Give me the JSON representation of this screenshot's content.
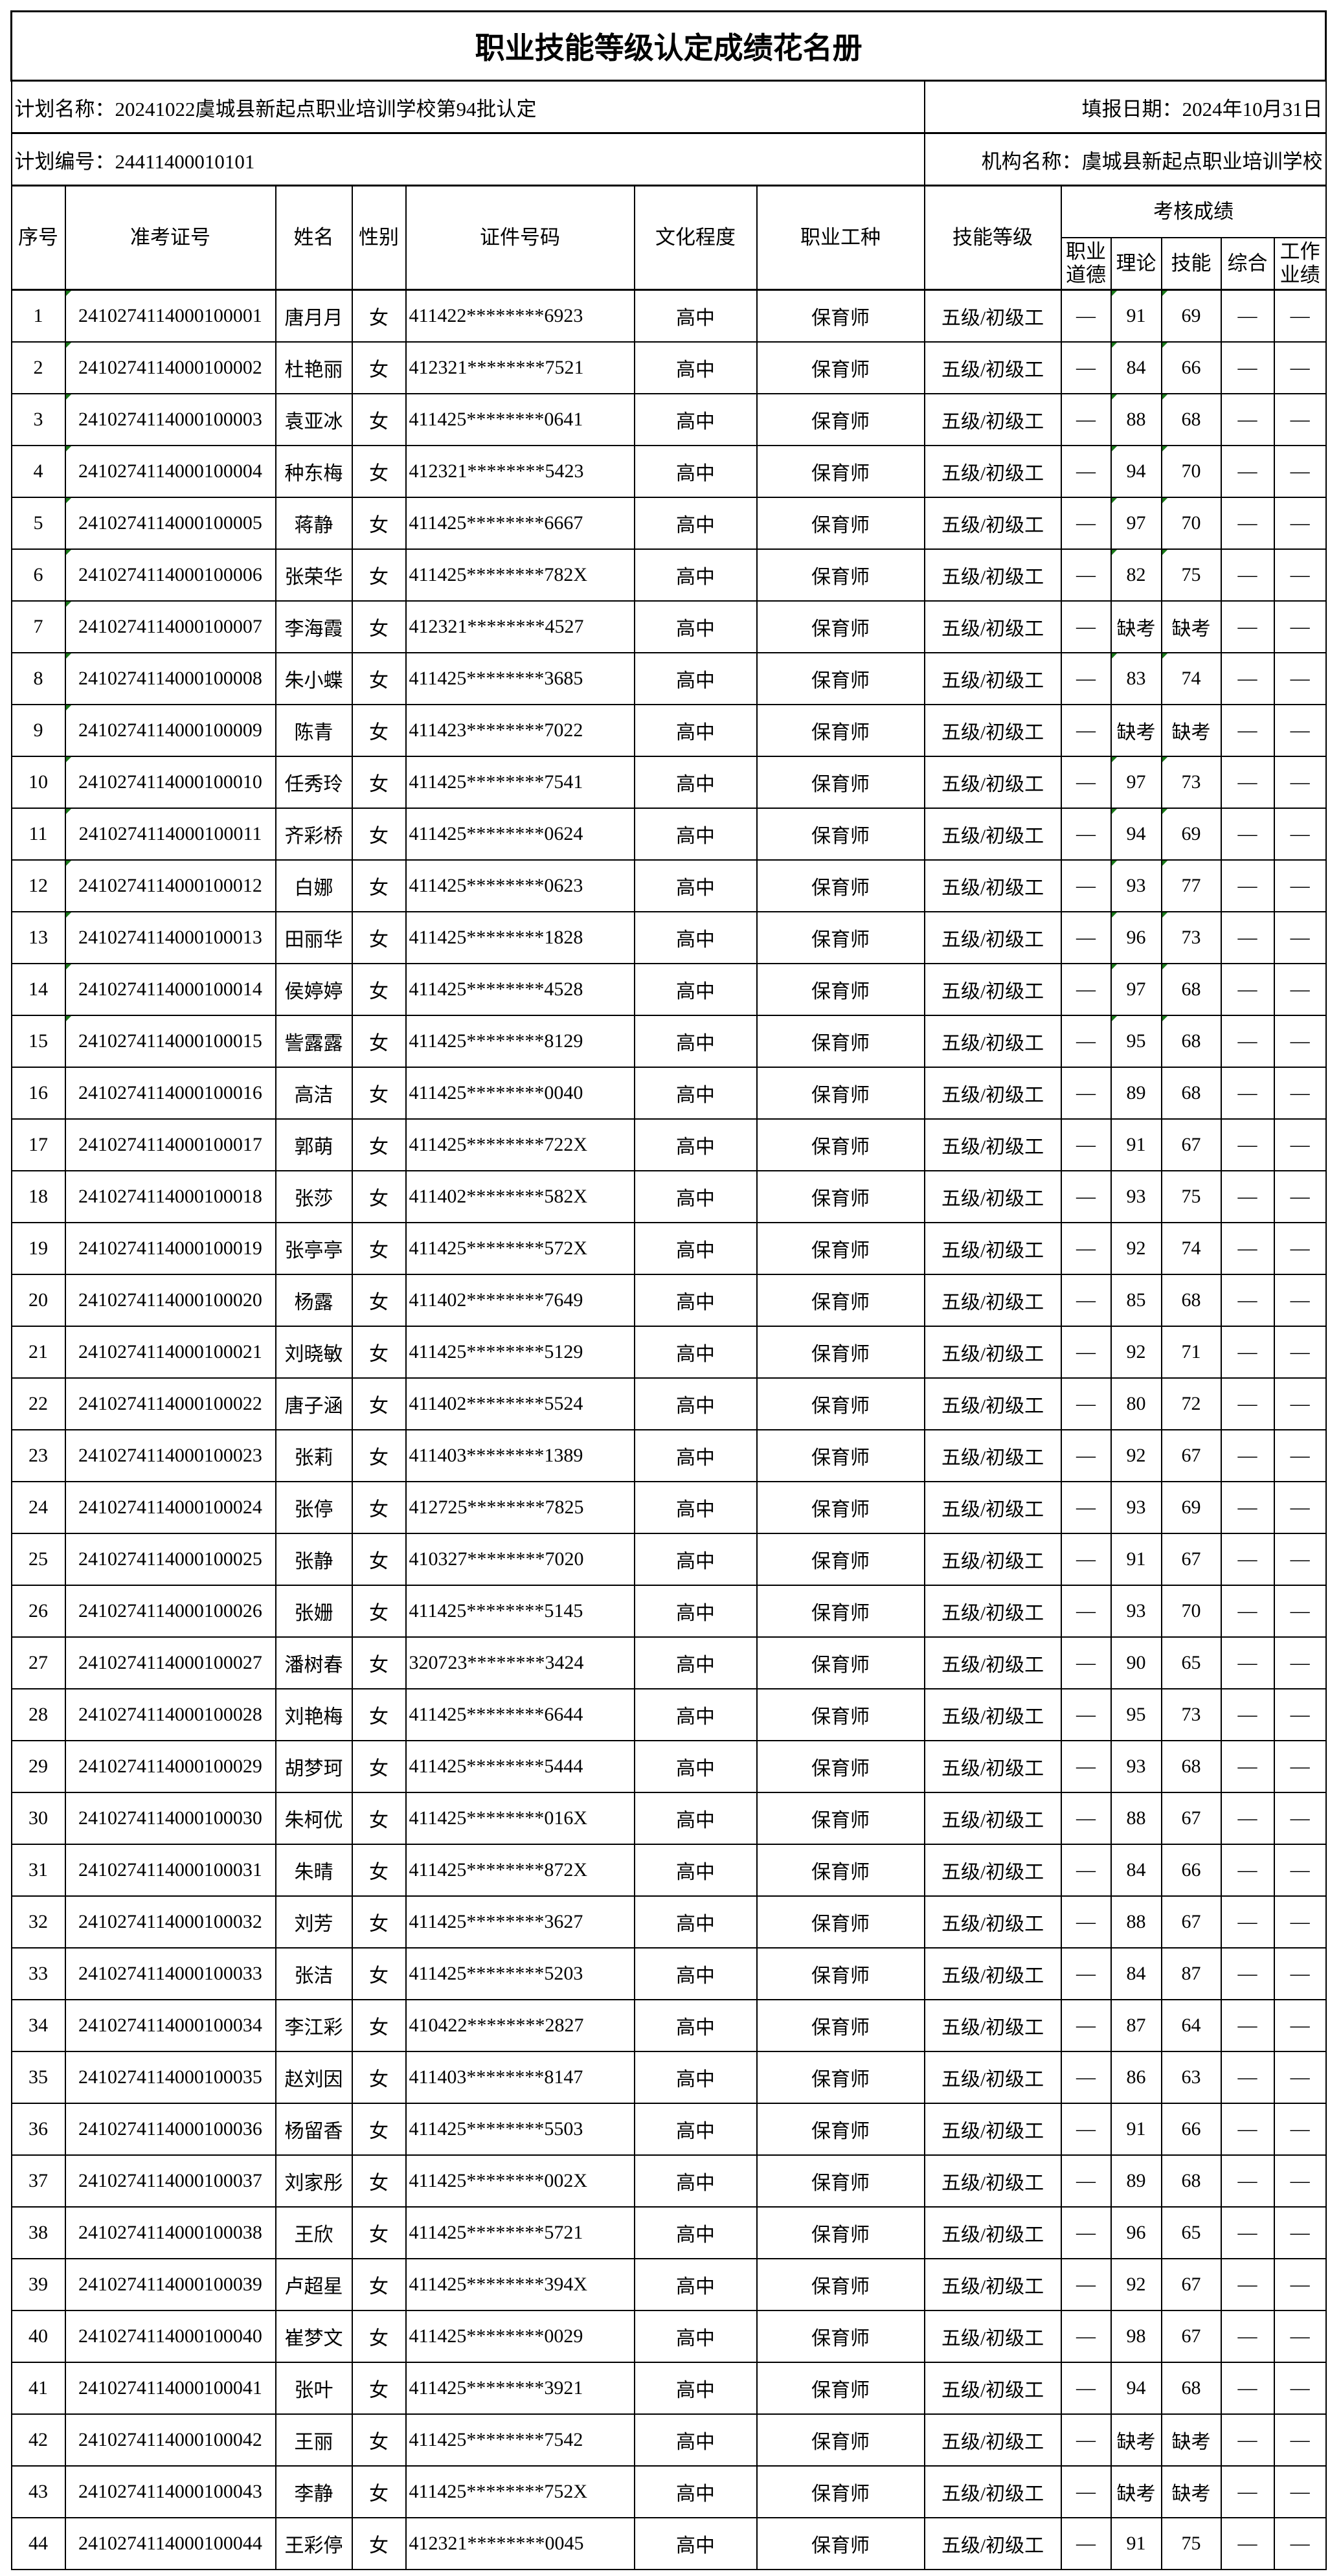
{
  "title": "职业技能等级认定成绩花名册",
  "info": {
    "plan_name": "计划名称：20241022虞城县新起点职业培训学校第94批认定",
    "fill_date": "填报日期：2024年10月31日",
    "plan_number": "计划编号：24411400010101",
    "org_name": "机构名称：虞城县新起点职业培训学校"
  },
  "headers": {
    "seq": "序号",
    "exam_id": "准考证号",
    "name": "姓名",
    "gender": "性别",
    "id_number": "证件号码",
    "education": "文化程度",
    "occupation": "职业工种",
    "skill_level": "技能等级",
    "scores_group": "考核成绩",
    "ethics": "职业道德",
    "theory": "理论",
    "skill": "技能",
    "comprehensive": "综合",
    "performance": "工作业绩"
  },
  "rows": [
    [
      "1",
      "241027411400010000 1",
      "唐月月",
      "女",
      "411422********6923",
      "高中",
      "保育师",
      "五级/初级工",
      "—",
      "91",
      "69",
      "—",
      "—"
    ],
    [
      "2",
      "2410274114000100002",
      "杜艳丽",
      "女",
      "412321********7521",
      "高中",
      "保育师",
      "五级/初级工",
      "—",
      "84",
      "66",
      "—",
      "—"
    ],
    [
      "3",
      "2410274114000100003",
      "袁亚冰",
      "女",
      "411425********0641",
      "高中",
      "保育师",
      "五级/初级工",
      "—",
      "88",
      "68",
      "—",
      "—"
    ],
    [
      "4",
      "2410274114000100004",
      "种东梅",
      "女",
      "412321********5423",
      "高中",
      "保育师",
      "五级/初级工",
      "—",
      "94",
      "70",
      "—",
      "—"
    ],
    [
      "5",
      "2410274114000100005",
      "蒋静",
      "女",
      "411425********6667",
      "高中",
      "保育师",
      "五级/初级工",
      "—",
      "97",
      "70",
      "—",
      "—"
    ],
    [
      "6",
      "2410274114000100006",
      "张荣华",
      "女",
      "411425********782X",
      "高中",
      "保育师",
      "五级/初级工",
      "—",
      "82",
      "75",
      "—",
      "—"
    ],
    [
      "7",
      "2410274114000100007",
      "李海霞",
      "女",
      "412321********4527",
      "高中",
      "保育师",
      "五级/初级工",
      "—",
      "缺考",
      "缺考",
      "—",
      "—"
    ],
    [
      "8",
      "2410274114000100008",
      "朱小蝶",
      "女",
      "411425********3685",
      "高中",
      "保育师",
      "五级/初级工",
      "—",
      "83",
      "74",
      "—",
      "—"
    ],
    [
      "9",
      "2410274114000100009",
      "陈青",
      "女",
      "411423********7022",
      "高中",
      "保育师",
      "五级/初级工",
      "—",
      "缺考",
      "缺考",
      "—",
      "—"
    ],
    [
      "10",
      "2410274114000100010",
      "任秀玲",
      "女",
      "411425********7541",
      "高中",
      "保育师",
      "五级/初级工",
      "—",
      "97",
      "73",
      "—",
      "—"
    ],
    [
      "11",
      "2410274114000100011",
      "齐彩桥",
      "女",
      "411425********0624",
      "高中",
      "保育师",
      "五级/初级工",
      "—",
      "94",
      "69",
      "—",
      "—"
    ],
    [
      "12",
      "2410274114000100012",
      "白娜",
      "女",
      "411425********0623",
      "高中",
      "保育师",
      "五级/初级工",
      "—",
      "93",
      "77",
      "—",
      "—"
    ],
    [
      "13",
      "2410274114000100013",
      "田丽华",
      "女",
      "411425********1828",
      "高中",
      "保育师",
      "五级/初级工",
      "—",
      "96",
      "73",
      "—",
      "—"
    ],
    [
      "14",
      "2410274114000100014",
      "侯婷婷",
      "女",
      "411425********4528",
      "高中",
      "保育师",
      "五级/初级工",
      "—",
      "97",
      "68",
      "—",
      "—"
    ],
    [
      "15",
      "2410274114000100015",
      "訾露露",
      "女",
      "411425********8129",
      "高中",
      "保育师",
      "五级/初级工",
      "—",
      "95",
      "68",
      "—",
      "—"
    ],
    [
      "16",
      "2410274114000100016",
      "高洁",
      "女",
      "411425********0040",
      "高中",
      "保育师",
      "五级/初级工",
      "—",
      "89",
      "68",
      "—",
      "—"
    ],
    [
      "17",
      "2410274114000100017",
      "郭萌",
      "女",
      "411425********722X",
      "高中",
      "保育师",
      "五级/初级工",
      "—",
      "91",
      "67",
      "—",
      "—"
    ],
    [
      "18",
      "2410274114000100018",
      "张莎",
      "女",
      "411402********582X",
      "高中",
      "保育师",
      "五级/初级工",
      "—",
      "93",
      "75",
      "—",
      "—"
    ],
    [
      "19",
      "2410274114000100019",
      "张亭亭",
      "女",
      "411425********572X",
      "高中",
      "保育师",
      "五级/初级工",
      "—",
      "92",
      "74",
      "—",
      "—"
    ],
    [
      "20",
      "2410274114000100020",
      "杨露",
      "女",
      "411402********7649",
      "高中",
      "保育师",
      "五级/初级工",
      "—",
      "85",
      "68",
      "—",
      "—"
    ],
    [
      "21",
      "2410274114000100021",
      "刘晓敏",
      "女",
      "411425********5129",
      "高中",
      "保育师",
      "五级/初级工",
      "—",
      "92",
      "71",
      "—",
      "—"
    ],
    [
      "22",
      "2410274114000100022",
      "唐子涵",
      "女",
      "411402********5524",
      "高中",
      "保育师",
      "五级/初级工",
      "—",
      "80",
      "72",
      "—",
      "—"
    ],
    [
      "23",
      "2410274114000100023",
      "张莉",
      "女",
      "411403********1389",
      "高中",
      "保育师",
      "五级/初级工",
      "—",
      "92",
      "67",
      "—",
      "—"
    ],
    [
      "24",
      "2410274114000100024",
      "张停",
      "女",
      "412725********7825",
      "高中",
      "保育师",
      "五级/初级工",
      "—",
      "93",
      "69",
      "—",
      "—"
    ],
    [
      "25",
      "2410274114000100025",
      "张静",
      "女",
      "410327********7020",
      "高中",
      "保育师",
      "五级/初级工",
      "—",
      "91",
      "67",
      "—",
      "—"
    ],
    [
      "26",
      "2410274114000100026",
      "张姗",
      "女",
      "411425********5145",
      "高中",
      "保育师",
      "五级/初级工",
      "—",
      "93",
      "70",
      "—",
      "—"
    ],
    [
      "27",
      "2410274114000100027",
      "潘树春",
      "女",
      "320723********3424",
      "高中",
      "保育师",
      "五级/初级工",
      "—",
      "90",
      "65",
      "—",
      "—"
    ],
    [
      "28",
      "2410274114000100028",
      "刘艳梅",
      "女",
      "411425********6644",
      "高中",
      "保育师",
      "五级/初级工",
      "—",
      "95",
      "73",
      "—",
      "—"
    ],
    [
      "29",
      "2410274114000100029",
      "胡梦珂",
      "女",
      "411425********5444",
      "高中",
      "保育师",
      "五级/初级工",
      "—",
      "93",
      "68",
      "—",
      "—"
    ],
    [
      "30",
      "2410274114000100030",
      "朱柯优",
      "女",
      "411425********016X",
      "高中",
      "保育师",
      "五级/初级工",
      "—",
      "88",
      "67",
      "—",
      "—"
    ],
    [
      "31",
      "2410274114000100031",
      "朱晴",
      "女",
      "411425********872X",
      "高中",
      "保育师",
      "五级/初级工",
      "—",
      "84",
      "66",
      "—",
      "—"
    ],
    [
      "32",
      "2410274114000100032",
      "刘芳",
      "女",
      "411425********3627",
      "高中",
      "保育师",
      "五级/初级工",
      "—",
      "88",
      "67",
      "—",
      "—"
    ],
    [
      "33",
      "2410274114000100033",
      "张洁",
      "女",
      "411425********5203",
      "高中",
      "保育师",
      "五级/初级工",
      "—",
      "84",
      "87",
      "—",
      "—"
    ],
    [
      "34",
      "2410274114000100034",
      "李江彩",
      "女",
      "410422********2827",
      "高中",
      "保育师",
      "五级/初级工",
      "—",
      "87",
      "64",
      "—",
      "—"
    ],
    [
      "35",
      "2410274114000100035",
      "赵刘因",
      "女",
      "411403********8147",
      "高中",
      "保育师",
      "五级/初级工",
      "—",
      "86",
      "63",
      "—",
      "—"
    ],
    [
      "36",
      "2410274114000100036",
      "杨留香",
      "女",
      "411425********5503",
      "高中",
      "保育师",
      "五级/初级工",
      "—",
      "91",
      "66",
      "—",
      "—"
    ],
    [
      "37",
      "2410274114000100037",
      "刘家彤",
      "女",
      "411425********002X",
      "高中",
      "保育师",
      "五级/初级工",
      "—",
      "89",
      "68",
      "—",
      "—"
    ],
    [
      "38",
      "2410274114000100038",
      "王欣",
      "女",
      "411425********5721",
      "高中",
      "保育师",
      "五级/初级工",
      "—",
      "96",
      "65",
      "—",
      "—"
    ],
    [
      "39",
      "2410274114000100039",
      "卢超星",
      "女",
      "411425********394X",
      "高中",
      "保育师",
      "五级/初级工",
      "—",
      "92",
      "67",
      "—",
      "—"
    ],
    [
      "40",
      "2410274114000100040",
      "崔梦文",
      "女",
      "411425********0029",
      "高中",
      "保育师",
      "五级/初级工",
      "—",
      "98",
      "67",
      "—",
      "—"
    ],
    [
      "41",
      "2410274114000100041",
      "张叶",
      "女",
      "411425********3921",
      "高中",
      "保育师",
      "五级/初级工",
      "—",
      "94",
      "68",
      "—",
      "—"
    ],
    [
      "42",
      "2410274114000100042",
      "王丽",
      "女",
      "411425********7542",
      "高中",
      "保育师",
      "五级/初级工",
      "—",
      "缺考",
      "缺考",
      "—",
      "—"
    ],
    [
      "43",
      "2410274114000100043",
      "李静",
      "女",
      "411425********752X",
      "高中",
      "保育师",
      "五级/初级工",
      "—",
      "缺考",
      "缺考",
      "—",
      "—"
    ],
    [
      "44",
      "2410274114000100044",
      "王彩停",
      "女",
      "412321********0045",
      "高中",
      "保育师",
      "五级/初级工",
      "—",
      "91",
      "75",
      "—",
      "—"
    ]
  ],
  "colors": {
    "border": "#000000",
    "error_flag": "#1a7a1a"
  }
}
